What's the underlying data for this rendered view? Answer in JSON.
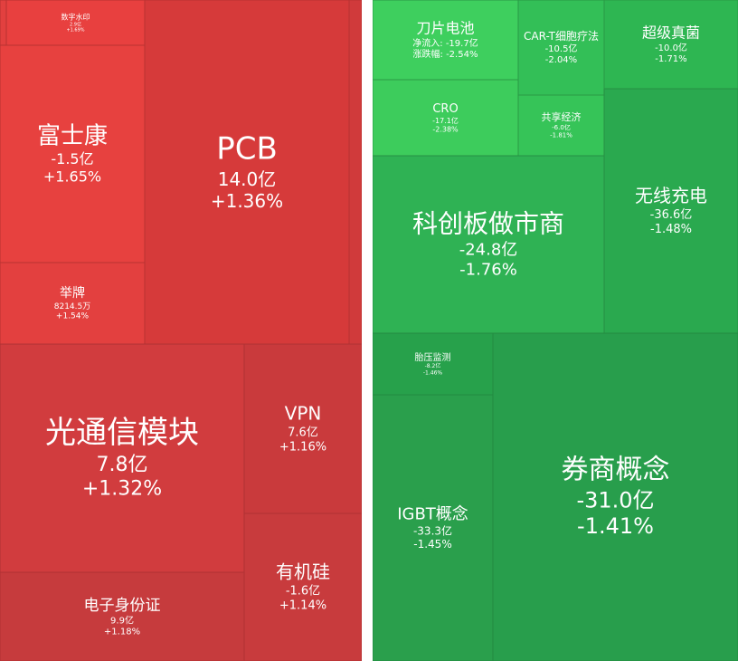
{
  "tiles": [
    {
      "name": "数字水印",
      "flow": "2.9亿",
      "change": "+1.69%"
    },
    {
      "name": "富士康",
      "flow": "-1.5亿",
      "change": "+1.65%"
    },
    {
      "name": "举牌",
      "flow": "8214.5万",
      "change": "+1.54%"
    },
    {
      "name": "PCB",
      "flow": "14.0亿",
      "change": "+1.36%"
    },
    {
      "name": "光通信模块",
      "flow": "7.8亿",
      "change": "+1.32%"
    },
    {
      "name": "VPN",
      "flow": "7.6亿",
      "change": "+1.16%"
    },
    {
      "name": "有机硅",
      "flow": "-1.6亿",
      "change": "+1.14%"
    },
    {
      "name": "电子身份证",
      "flow": "9.9亿",
      "change": "+1.18%"
    },
    {
      "name": "刀片电池",
      "flow": "净流入: -19.7亿",
      "change": "涨跌幅: -2.54%"
    },
    {
      "name": "CAR-T细胞疗法",
      "flow": "-10.5亿",
      "change": "-2.04%"
    },
    {
      "name": "超级真菌",
      "flow": "-10.0亿",
      "change": "-1.71%"
    },
    {
      "name": "CRO",
      "flow": "-17.1亿",
      "change": "-2.38%"
    },
    {
      "name": "共享经济",
      "flow": "-6.0亿",
      "change": "-1.81%"
    },
    {
      "name": "科创板做市商",
      "flow": "-24.8亿",
      "change": "-1.76%"
    },
    {
      "name": "无线充电",
      "flow": "-36.6亿",
      "change": "-1.48%"
    },
    {
      "name": "胎压监测",
      "flow": "-8.2亿",
      "change": "-1.46%"
    },
    {
      "name": "IGBT概念",
      "flow": "-33.3亿",
      "change": "-1.45%"
    },
    {
      "name": "券商概念",
      "flow": "-31.0亿",
      "change": "-1.41%"
    }
  ]
}
